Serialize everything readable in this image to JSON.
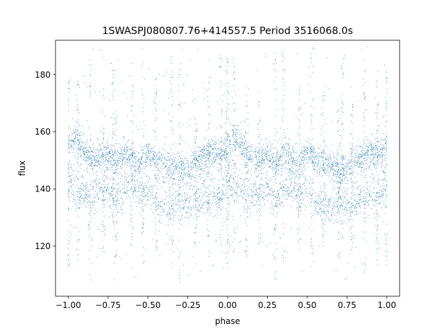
{
  "chart_data": {
    "type": "scatter",
    "title": "1SWASPJ080807.76+414557.5 Period 3516068.0s",
    "xlabel": "phase",
    "ylabel": "flux",
    "xlim": [
      -1.08,
      1.08
    ],
    "ylim": [
      102.5,
      192
    ],
    "x_ticks": [
      -1.0,
      -0.75,
      -0.5,
      -0.25,
      0.0,
      0.25,
      0.5,
      0.75,
      1.0
    ],
    "x_tick_labels": [
      "−1.00",
      "−0.75",
      "−0.50",
      "−0.25",
      "0.00",
      "0.25",
      "0.50",
      "0.75",
      "1.00"
    ],
    "y_ticks": [
      120,
      140,
      160,
      180
    ],
    "y_tick_labels": [
      "120",
      "140",
      "160",
      "180"
    ],
    "grid": false,
    "point_color": "#1f77b4",
    "series": [
      {
        "profile_phase": [
          0.0,
          0.05,
          0.1,
          0.15,
          0.2,
          0.25,
          0.3,
          0.35,
          0.4,
          0.45,
          0.5,
          0.55,
          0.6,
          0.65,
          0.7,
          0.75,
          0.8,
          0.85,
          0.9,
          0.95,
          1.0
        ],
        "profile_upper_flux": [
          155,
          158,
          154,
          150,
          151,
          152,
          148,
          153,
          151,
          148,
          153,
          150,
          149,
          148,
          147,
          146,
          150,
          151,
          153,
          152,
          155
        ],
        "profile_lower_flux": [
          143,
          140,
          138,
          137,
          139,
          140,
          136,
          139,
          142,
          137,
          141,
          134,
          133,
          133,
          135,
          134,
          135,
          137,
          137,
          136,
          143
        ],
        "spike_phase": [
          0.0,
          0.04,
          0.12,
          0.2,
          0.3,
          0.35,
          0.45,
          0.53,
          0.6,
          0.7,
          0.72,
          0.78,
          0.86,
          0.94,
          1.0
        ],
        "spike_flux_high": [
          188,
          189,
          178,
          172,
          186,
          188,
          180,
          190,
          176,
          168,
          186,
          176,
          185,
          178,
          182
        ],
        "spike_flux_low": [
          112,
          118,
          116,
          120,
          107,
          110,
          118,
          114,
          120,
          115,
          122,
          118,
          108,
          115,
          113
        ]
      }
    ]
  }
}
